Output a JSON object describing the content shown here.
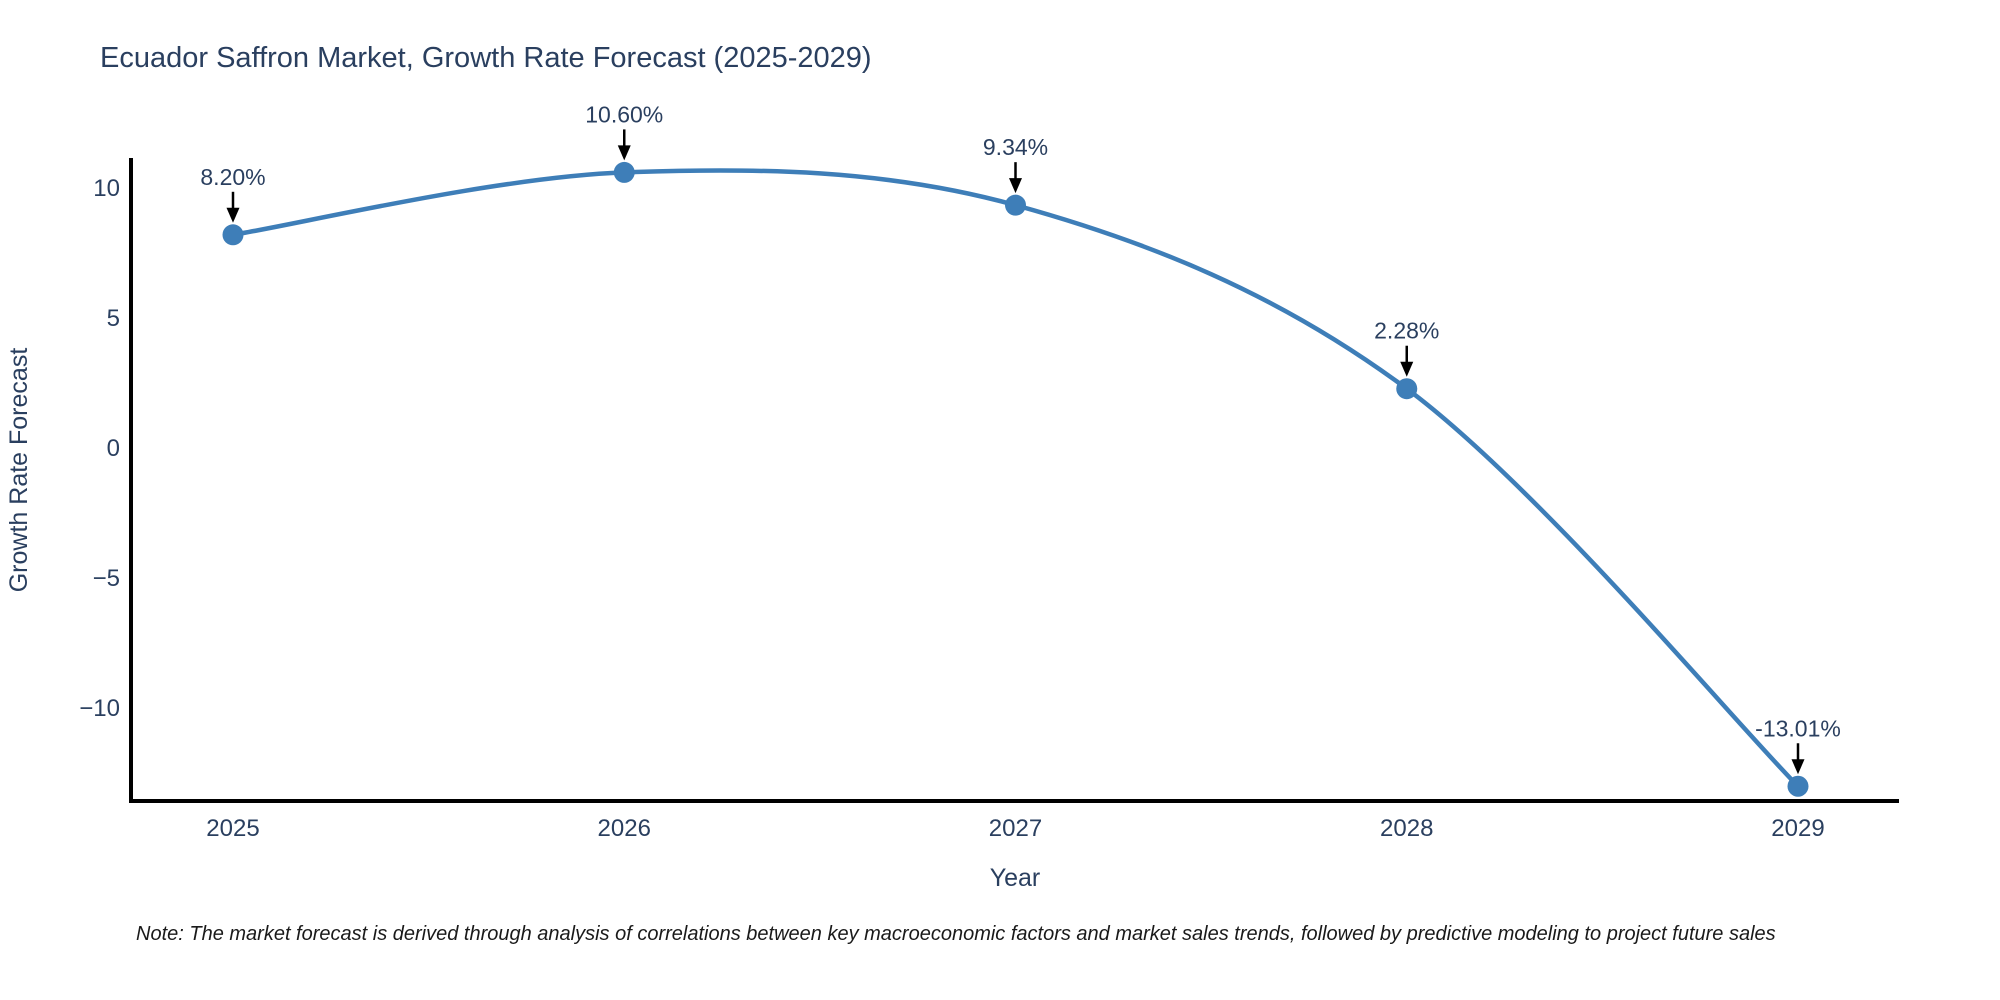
{
  "chart": {
    "note": "Note: The market forecast is derived through analysis of correlations between key macroeconomic factors and market sales trends, followed by predictive modeling to project future sales",
    "accent_color": "#3E7EB8",
    "text_color": "#2a3f5f"
  },
  "chart_data": {
    "type": "line",
    "title": "Ecuador Saffron Market, Growth Rate Forecast (2025-2029)",
    "xlabel": "Year",
    "ylabel": "Growth Rate Forecast",
    "x": [
      2025,
      2026,
      2027,
      2028,
      2029
    ],
    "xtick_labels": [
      "2025",
      "2026",
      "2027",
      "2028",
      "2029"
    ],
    "values": [
      8.2,
      10.6,
      9.34,
      2.28,
      -13.01
    ],
    "point_labels": [
      "8.20%",
      "10.60%",
      "9.34%",
      "2.28%",
      "-13.01%"
    ],
    "ytick_values": [
      10,
      5,
      0,
      -5,
      -10
    ],
    "ytick_labels": [
      "10",
      "5",
      "0",
      "−5",
      "−10"
    ],
    "ylim": [
      -13.6,
      11.1
    ],
    "line_shape": "spline",
    "markers": true,
    "grid": false,
    "legend_position": "none",
    "annotations": "value labels with downward black arrows above each point",
    "line_color": "#3E7EB8",
    "marker_color": "#3E7EB8",
    "arrow_color": "#000000",
    "axis_line_color": "#000000"
  }
}
